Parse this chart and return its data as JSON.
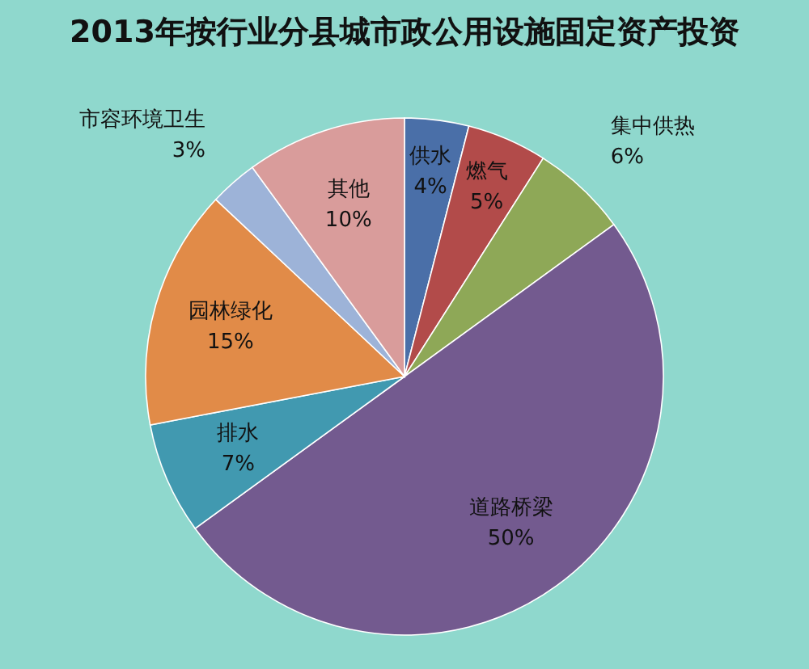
{
  "chart_data": {
    "type": "pie",
    "title": "2013年按行业分县城市政公用设施固定资产投资",
    "categories": [
      "供水",
      "燃气",
      "集中供热",
      "道路桥梁",
      "排水",
      "园林绿化",
      "市容环境卫生",
      "其他"
    ],
    "values": [
      4,
      5,
      6,
      50,
      7,
      15,
      3,
      10
    ],
    "value_labels": [
      "4%",
      "5%",
      "6%",
      "50%",
      "7%",
      "15%",
      "3%",
      "10%"
    ],
    "colors": [
      "#4a6fa8",
      "#b24b4a",
      "#8ea857",
      "#735a8f",
      "#4199b0",
      "#e18b48",
      "#9db3d8",
      "#d99c9b"
    ]
  }
}
